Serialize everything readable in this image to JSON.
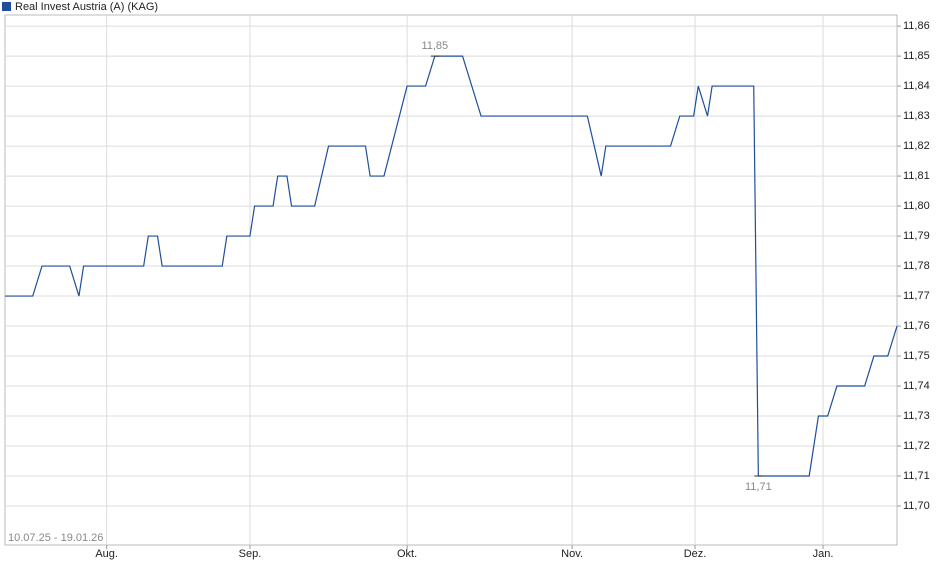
{
  "chart_data": {
    "type": "line",
    "title": "Real Invest Austria (A) (KAG)",
    "subtitle": "10.07.25 - 19.01.26",
    "x": [
      0,
      6,
      8,
      14,
      16,
      17,
      30,
      31,
      33,
      34,
      47,
      48,
      53,
      54,
      58,
      59,
      61,
      62,
      67,
      70,
      78,
      79,
      82,
      87,
      91,
      93,
      99,
      103,
      126,
      129,
      130,
      144,
      146,
      149,
      150,
      152,
      153,
      162,
      163,
      174,
      176,
      178,
      180,
      186,
      188,
      191,
      193
    ],
    "series": [
      {
        "name": "Real Invest Austria (A) (KAG)",
        "color": "#1f4e9c",
        "values": [
          11.77,
          11.77,
          11.78,
          11.78,
          11.77,
          11.78,
          11.78,
          11.79,
          11.79,
          11.78,
          11.78,
          11.79,
          11.79,
          11.8,
          11.8,
          11.81,
          11.81,
          11.8,
          11.8,
          11.82,
          11.82,
          11.81,
          11.81,
          11.84,
          11.84,
          11.85,
          11.85,
          11.83,
          11.83,
          11.81,
          11.82,
          11.82,
          11.83,
          11.83,
          11.84,
          11.83,
          11.84,
          11.84,
          11.71,
          11.71,
          11.73,
          11.73,
          11.74,
          11.74,
          11.75,
          11.75,
          11.76
        ]
      }
    ],
    "xlim": [
      0,
      193
    ],
    "xticks": [
      {
        "value": 22,
        "label": "Aug."
      },
      {
        "value": 53,
        "label": "Sep."
      },
      {
        "value": 87,
        "label": "Okt."
      },
      {
        "value": 122.7,
        "label": "Nov."
      },
      {
        "value": 149.3,
        "label": "Dez."
      },
      {
        "value": 177,
        "label": "Jan."
      }
    ],
    "ylim": [
      11.687,
      11.8637
    ],
    "yticks": [
      {
        "value": 11.7,
        "label": "11,70"
      },
      {
        "value": 11.71,
        "label": "11,71"
      },
      {
        "value": 11.72,
        "label": "11,72"
      },
      {
        "value": 11.73,
        "label": "11,73"
      },
      {
        "value": 11.74,
        "label": "11,74"
      },
      {
        "value": 11.75,
        "label": "11,75"
      },
      {
        "value": 11.76,
        "label": "11,76"
      },
      {
        "value": 11.77,
        "label": "11,77"
      },
      {
        "value": 11.78,
        "label": "11,78"
      },
      {
        "value": 11.79,
        "label": "11,79"
      },
      {
        "value": 11.8,
        "label": "11,80"
      },
      {
        "value": 11.81,
        "label": "11,81"
      },
      {
        "value": 11.82,
        "label": "11,82"
      },
      {
        "value": 11.83,
        "label": "11,83"
      },
      {
        "value": 11.84,
        "label": "11,84"
      },
      {
        "value": 11.85,
        "label": "11,85"
      },
      {
        "value": 11.86,
        "label": "11,86"
      }
    ],
    "annotations": [
      {
        "x": 93,
        "value": 11.85,
        "label": "11,85",
        "position": "above"
      },
      {
        "x": 163,
        "value": 11.71,
        "label": "11,71",
        "position": "below"
      }
    ],
    "grid": true
  }
}
